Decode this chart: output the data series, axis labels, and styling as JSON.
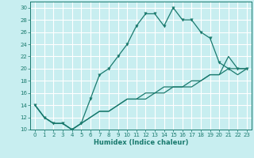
{
  "title": "",
  "xlabel": "Humidex (Indice chaleur)",
  "bg_color": "#c8eef0",
  "grid_color": "#ffffff",
  "line_color": "#1a7a6e",
  "xlim": [
    -0.5,
    23.5
  ],
  "ylim": [
    10,
    31
  ],
  "xticks": [
    0,
    1,
    2,
    3,
    4,
    5,
    6,
    7,
    8,
    9,
    10,
    11,
    12,
    13,
    14,
    15,
    16,
    17,
    18,
    19,
    20,
    21,
    22,
    23
  ],
  "yticks": [
    10,
    12,
    14,
    16,
    18,
    20,
    22,
    24,
    26,
    28,
    30
  ],
  "line1_x": [
    0,
    1,
    2,
    3,
    4,
    5,
    6,
    7,
    8,
    9,
    10,
    11,
    12,
    13,
    14,
    15,
    16,
    17,
    18,
    19,
    20,
    21,
    22,
    23
  ],
  "line1_y": [
    14,
    12,
    11,
    11,
    10,
    11,
    15,
    19,
    20,
    22,
    24,
    27,
    29,
    29,
    27,
    30,
    28,
    28,
    26,
    25,
    21,
    20,
    20,
    20
  ],
  "line2_x": [
    0,
    1,
    2,
    3,
    4,
    5,
    6,
    7,
    8,
    9,
    10,
    11,
    12,
    13,
    14,
    15,
    16,
    17,
    18,
    19,
    20,
    21,
    22,
    23
  ],
  "line2_y": [
    14,
    12,
    11,
    11,
    10,
    11,
    12,
    13,
    13,
    14,
    15,
    15,
    16,
    16,
    17,
    17,
    17,
    18,
    18,
    19,
    19,
    20,
    19,
    20
  ],
  "line3_x": [
    0,
    1,
    2,
    3,
    4,
    5,
    6,
    7,
    8,
    9,
    10,
    11,
    12,
    13,
    14,
    15,
    16,
    17,
    18,
    19,
    20,
    21,
    22,
    23
  ],
  "line3_y": [
    14,
    12,
    11,
    11,
    10,
    11,
    12,
    13,
    13,
    14,
    15,
    15,
    15,
    16,
    16,
    17,
    17,
    17,
    18,
    19,
    19,
    22,
    20,
    20
  ]
}
